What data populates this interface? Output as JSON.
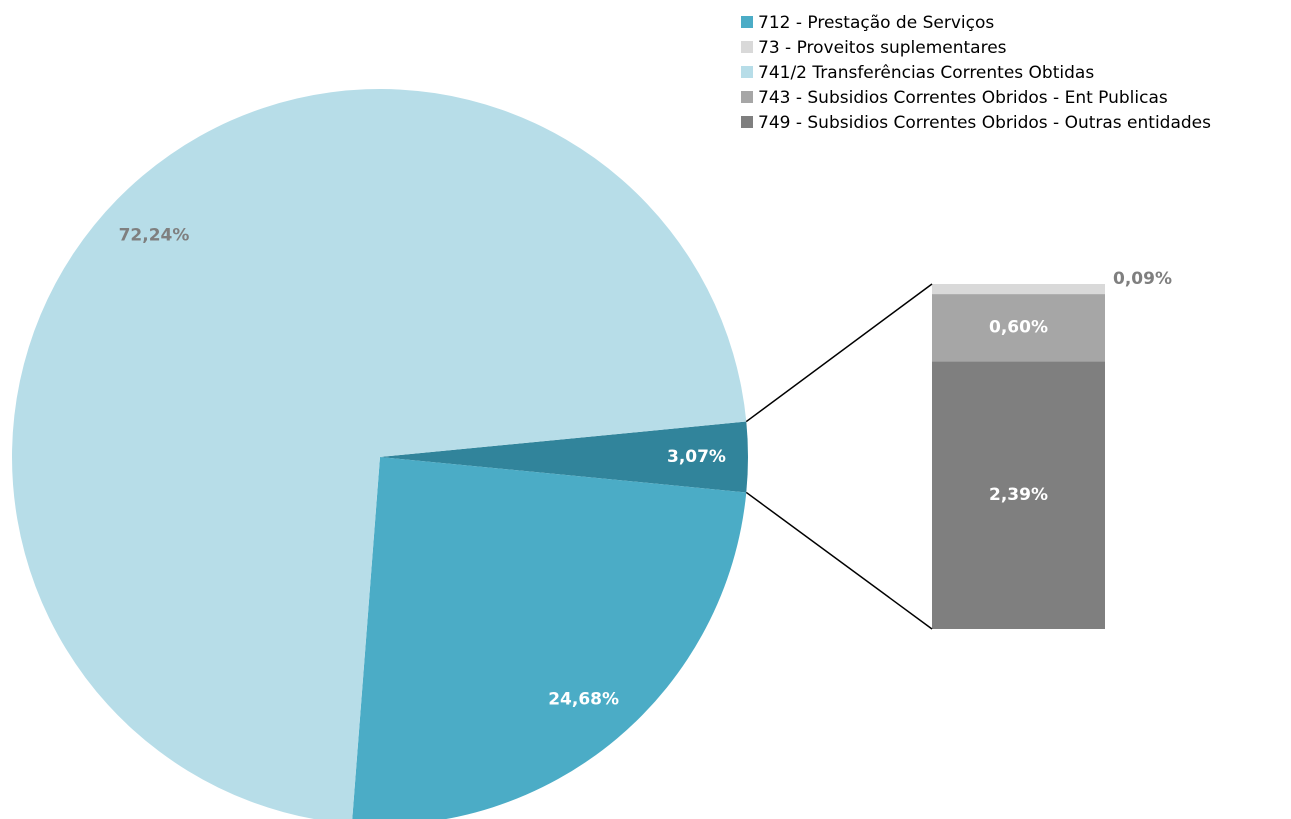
{
  "chart_data": {
    "type": "pie-of-bar",
    "categories": [
      "712 - Prestação de Serviços",
      "741/2 Transferências Correntes Obtidas",
      null
    ],
    "values": [
      24.68,
      72.24,
      3.07
    ],
    "value_labels": [
      "24,68%",
      "72,24%",
      "3,07%"
    ],
    "colors": [
      "#4bacc6",
      "#b7dde8",
      "#31849b"
    ],
    "bar": {
      "categories": [
        "749 - Subsidios Correntes Obridos - Outras entidades",
        "743 - Subsidios Correntes Obridos - Ent Publicas",
        "73 - Proveitos suplementares"
      ],
      "values": [
        2.39,
        0.6,
        0.09
      ],
      "value_labels": [
        "2,39%",
        "0,60%",
        "0,09%"
      ],
      "colors": [
        "#7f7f7f",
        "#a6a6a6",
        "#d9d9d9"
      ]
    }
  }
}
